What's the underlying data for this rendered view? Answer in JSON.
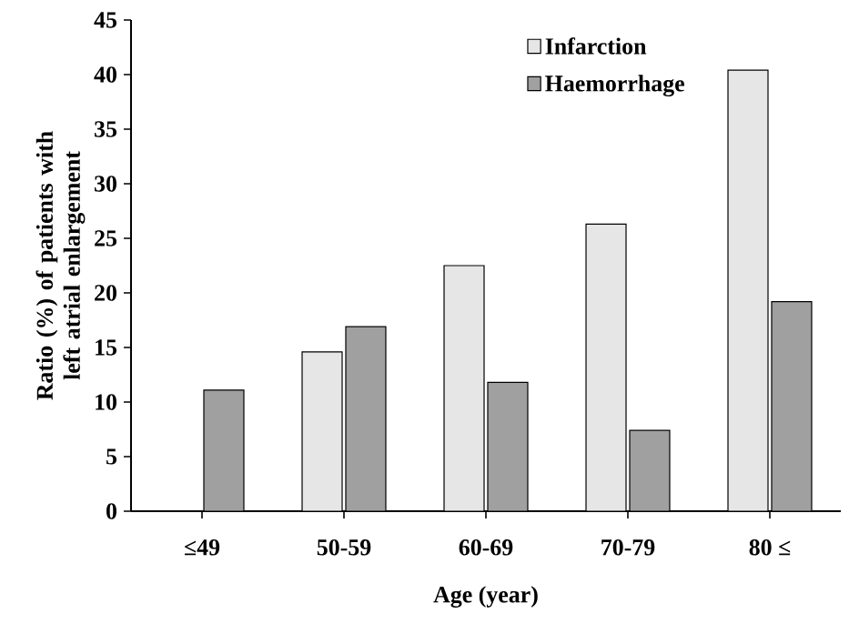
{
  "chart_data": {
    "type": "bar",
    "xlabel": "Age (year)",
    "ylabel": "Ratio (%) of patients with left atrial enlargement",
    "categories": [
      "≤49",
      "50-59",
      "60-69",
      "70-79",
      "80 ≤"
    ],
    "series": [
      {
        "name": "Infarction",
        "color": "#e6e6e6",
        "values": [
          null,
          14.6,
          22.5,
          26.3,
          40.4
        ]
      },
      {
        "name": "Haemorrhage",
        "color": "#a0a0a0",
        "values": [
          11.1,
          16.9,
          11.8,
          7.4,
          19.2
        ]
      }
    ],
    "ylim": [
      0,
      45
    ],
    "yticks": [
      0,
      5,
      10,
      15,
      20,
      25,
      30,
      35,
      40,
      45
    ],
    "legend": "top right"
  }
}
